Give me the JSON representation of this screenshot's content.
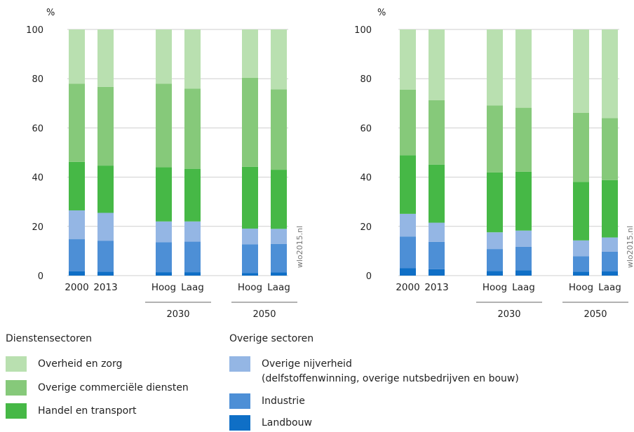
{
  "colors": {
    "overheid": "#b9e0b0",
    "commercieel": "#86c97a",
    "handel": "#46b846",
    "nijverheid": "#94b6e4",
    "industrie": "#4d8fd6",
    "landbouw": "#0f6fc6"
  },
  "chart_data": [
    {
      "type": "bar",
      "stacked": true,
      "yunit": "%",
      "ylim": [
        0,
        100
      ],
      "yticks": [
        0,
        20,
        40,
        60,
        80,
        100
      ],
      "source": "wlo2015.nl",
      "categories": [
        "2000",
        "2013",
        "Hoog",
        "Laag",
        "Hoog",
        "Laag"
      ],
      "groups": [
        {
          "label": "2030",
          "members": [
            2,
            3
          ]
        },
        {
          "label": "2050",
          "members": [
            4,
            5
          ]
        }
      ],
      "series": [
        {
          "name": "Landbouw",
          "color_key": "landbouw",
          "values": [
            1.8,
            1.6,
            1.4,
            1.4,
            1.1,
            1.3
          ]
        },
        {
          "name": "Industrie",
          "color_key": "industrie",
          "values": [
            13.0,
            12.6,
            12.2,
            12.4,
            11.6,
            11.6
          ]
        },
        {
          "name": "Overige nijverheid",
          "color_key": "nijverheid",
          "values": [
            11.7,
            11.3,
            8.4,
            8.2,
            6.4,
            6.1
          ]
        },
        {
          "name": "Handel en transport",
          "color_key": "handel",
          "values": [
            19.7,
            19.2,
            22.0,
            21.4,
            25.1,
            24.0
          ]
        },
        {
          "name": "Overige commerciële diensten",
          "color_key": "commercieel",
          "values": [
            31.8,
            32.0,
            34.0,
            32.6,
            36.2,
            32.7
          ]
        },
        {
          "name": "Overheid en zorg",
          "color_key": "overheid",
          "values": [
            22.0,
            23.3,
            22.0,
            24.0,
            19.6,
            24.3
          ]
        }
      ]
    },
    {
      "type": "bar",
      "stacked": true,
      "yunit": "%",
      "ylim": [
        0,
        100
      ],
      "yticks": [
        0,
        20,
        40,
        60,
        80,
        100
      ],
      "source": "wlo2015.nl",
      "categories": [
        "2000",
        "2013",
        "Hoog",
        "Laag",
        "Hoog",
        "Laag"
      ],
      "groups": [
        {
          "label": "2030",
          "members": [
            2,
            3
          ]
        },
        {
          "label": "2050",
          "members": [
            4,
            5
          ]
        }
      ],
      "series": [
        {
          "name": "Landbouw",
          "color_key": "landbouw",
          "values": [
            3.0,
            2.6,
            1.9,
            2.2,
            1.6,
            1.7
          ]
        },
        {
          "name": "Industrie",
          "color_key": "industrie",
          "values": [
            12.9,
            11.1,
            8.9,
            9.5,
            6.3,
            8.0
          ]
        },
        {
          "name": "Overige nijverheid",
          "color_key": "nijverheid",
          "values": [
            9.2,
            7.8,
            6.8,
            6.6,
            6.4,
            5.8
          ]
        },
        {
          "name": "Handel en transport",
          "color_key": "handel",
          "values": [
            23.8,
            23.6,
            24.3,
            23.9,
            23.8,
            23.3
          ]
        },
        {
          "name": "Overige commerciële diensten",
          "color_key": "commercieel",
          "values": [
            26.6,
            26.2,
            27.2,
            26.0,
            28.0,
            25.2
          ]
        },
        {
          "name": "Overheid en zorg",
          "color_key": "overheid",
          "values": [
            24.5,
            28.7,
            30.9,
            31.8,
            33.9,
            36.0
          ]
        }
      ]
    }
  ],
  "legend": {
    "diensten": {
      "title": "Dienstensectoren",
      "items": [
        {
          "label": "Overheid en zorg",
          "color_key": "overheid"
        },
        {
          "label": "Overige commerciële diensten",
          "color_key": "commercieel"
        },
        {
          "label": "Handel en transport",
          "color_key": "handel"
        }
      ]
    },
    "overige": {
      "title": "Overige sectoren",
      "items": [
        {
          "label": "Overige nijverheid",
          "sublabel": "(delfstoffenwinning, overige nutsbedrijven en bouw)",
          "color_key": "nijverheid"
        },
        {
          "label": "Industrie",
          "color_key": "industrie"
        },
        {
          "label": "Landbouw",
          "color_key": "landbouw"
        }
      ]
    }
  }
}
